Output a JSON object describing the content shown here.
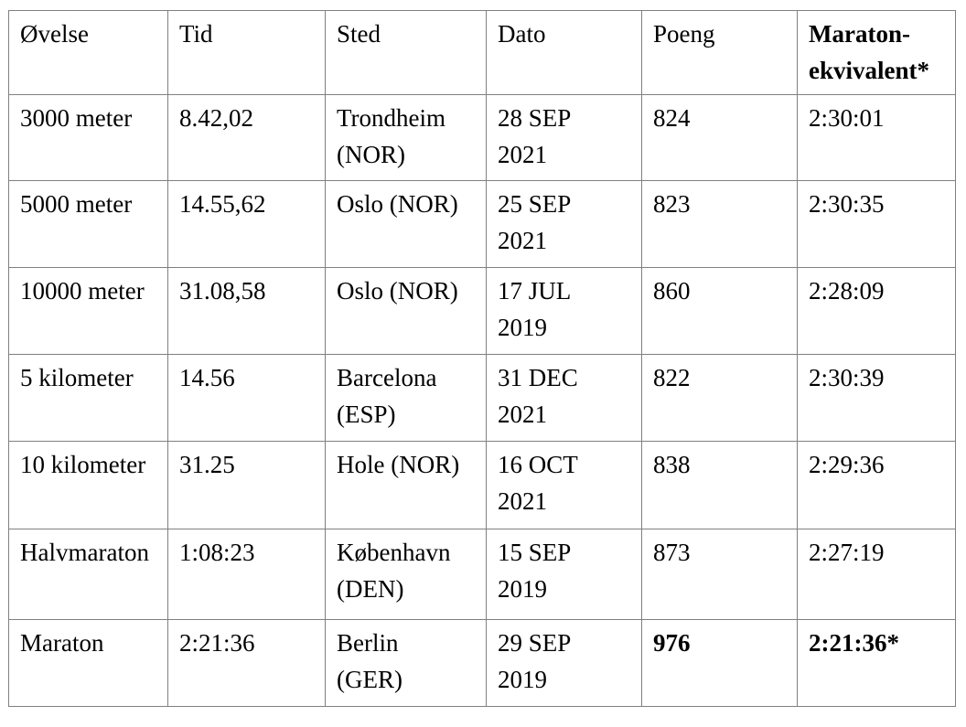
{
  "table": {
    "columns": {
      "ovelse": {
        "label": "Øvelse"
      },
      "tid": {
        "label": "Tid"
      },
      "sted": {
        "label": "Sted"
      },
      "dato": {
        "label": "Dato"
      },
      "poeng": {
        "label": "Poeng"
      },
      "maraton": {
        "label": "Maraton-\nekvivalent*"
      }
    },
    "rows": [
      {
        "ovelse": "3000 meter",
        "tid": "8.42,02",
        "sted": "Trondheim\n(NOR)",
        "dato": "28 SEP\n2021",
        "poeng": "824",
        "maraton": "2:30:01"
      },
      {
        "ovelse": "5000 meter",
        "tid": "14.55,62",
        "sted": "Oslo (NOR)",
        "dato": "25 SEP\n2021",
        "poeng": "823",
        "maraton": "2:30:35"
      },
      {
        "ovelse": "10000 meter",
        "tid": "31.08,58",
        "sted": "Oslo (NOR)",
        "dato": "17 JUL\n2019",
        "poeng": "860",
        "maraton": "2:28:09"
      },
      {
        "ovelse": "5 kilometer",
        "tid": "14.56",
        "sted": "Barcelona\n(ESP)",
        "dato": "31 DEC\n2021",
        "poeng": "822",
        "maraton": "2:30:39"
      },
      {
        "ovelse": "10 kilometer",
        "tid": "31.25",
        "sted": "Hole (NOR)",
        "dato": "16 OCT\n2021",
        "poeng": "838",
        "maraton": "2:29:36"
      },
      {
        "ovelse": "Halvmaraton",
        "tid": "1:08:23",
        "sted": "København\n(DEN)",
        "dato": "15 SEP\n2019",
        "poeng": "873",
        "maraton": "2:27:19"
      },
      {
        "ovelse": "Maraton",
        "tid": "2:21:36",
        "sted": "Berlin\n(GER)",
        "dato": "29 SEP\n2019",
        "poeng": "976",
        "maraton": "2:21:36*"
      }
    ],
    "styles": {
      "border_color": "#808080",
      "background": "#ffffff",
      "text_color": "#000000"
    }
  }
}
